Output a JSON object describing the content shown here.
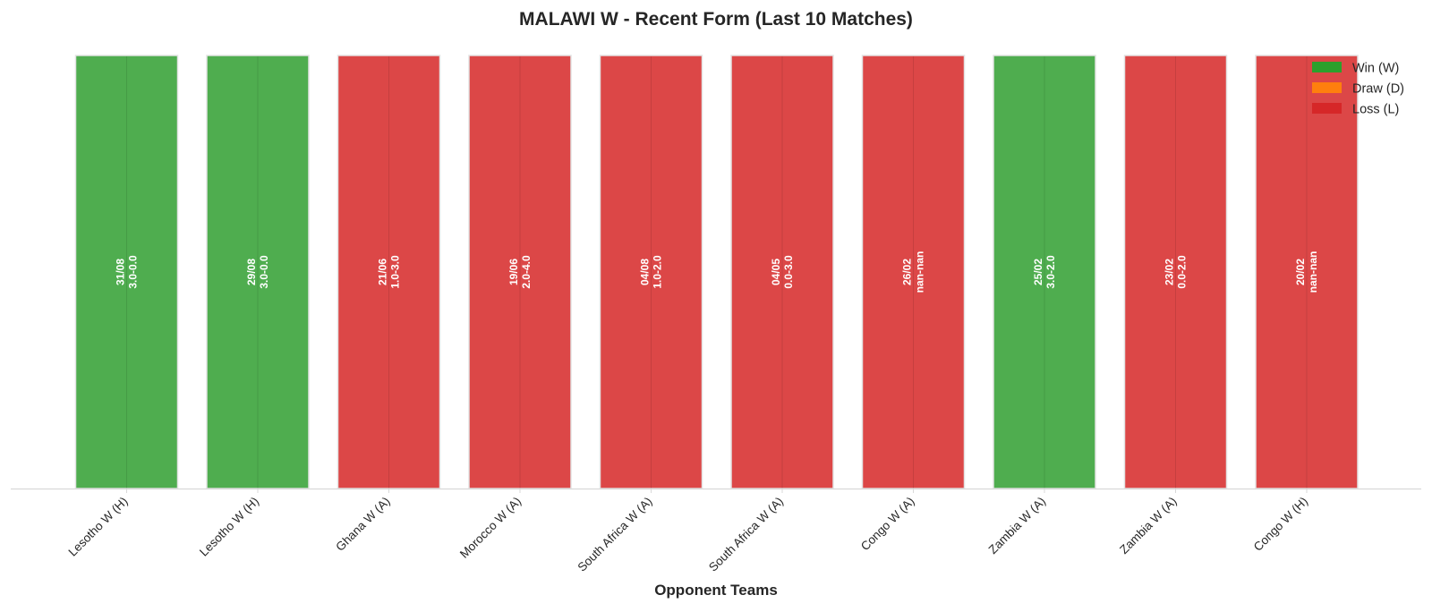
{
  "chart_data": {
    "type": "bar",
    "title": "MALAWI W - Recent Form (Last 10 Matches)",
    "xlabel": "Opponent Teams",
    "ylabel": "",
    "grid": false,
    "legend_position": "top-right",
    "legend": [
      {
        "code": "W",
        "label": "Win (W)",
        "color": "#2ca02c"
      },
      {
        "code": "D",
        "label": "Draw (D)",
        "color": "#ff7f0e"
      },
      {
        "code": "L",
        "label": "Loss (L)",
        "color": "#d62728"
      }
    ],
    "bar_colors": {
      "W": "#4fad4f",
      "D": "#ff8c26",
      "L": "#dc4747"
    },
    "categories": [
      "Lesotho W (H)",
      "Lesotho W (H)",
      "Ghana W (A)",
      "Morocco W (A)",
      "South Africa W (A)",
      "South Africa W (A)",
      "Congo W (A)",
      "Zambia W (A)",
      "Zambia W (A)",
      "Congo W (H)"
    ],
    "results": [
      "W",
      "W",
      "L",
      "L",
      "L",
      "L",
      "L",
      "W",
      "L",
      "L"
    ],
    "values": [
      1,
      1,
      1,
      1,
      1,
      1,
      1,
      1,
      1,
      1
    ],
    "ylim": [
      0,
      1.05
    ],
    "dates": [
      "31/08",
      "29/08",
      "21/06",
      "19/06",
      "04/08",
      "04/05",
      "26/02",
      "25/02",
      "23/02",
      "20/02"
    ],
    "scores": [
      "3.0-0.0",
      "3.0-0.0",
      "1.0-3.0",
      "2.0-4.0",
      "1.0-2.0",
      "0.0-3.0",
      "nan-nan",
      "3.0-2.0",
      "0.0-2.0",
      "nan-nan"
    ]
  }
}
